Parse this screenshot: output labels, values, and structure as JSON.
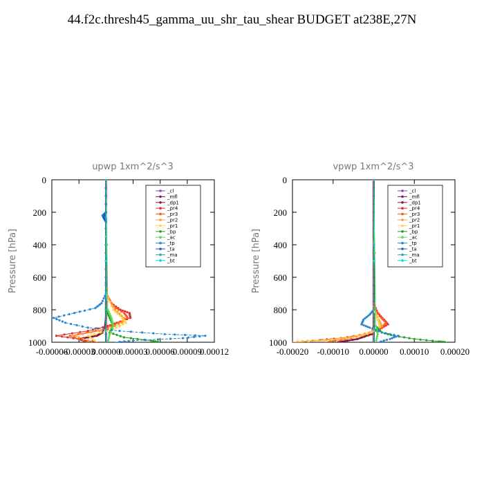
{
  "title": "44.f2c.thresh45_gamma_uu_shr_tau_shear  BUDGET at238E,27N",
  "legend_entries": [
    "_cl",
    "_mfl",
    "_dp1",
    "_pr4",
    "_pr3",
    "_pr2",
    "_pr1",
    "_bp",
    "_ac",
    "_tp",
    "_ta",
    "_ma",
    "_bt"
  ],
  "legend_colors": [
    "#8e44ad",
    "#7b1f5a",
    "#8b1a3a",
    "#e03030",
    "#ff5a1a",
    "#ff9a3a",
    "#ffd24a",
    "#22a022",
    "#55dd55",
    "#2a88cc",
    "#2255cc",
    "#22aaaa",
    "#00dddd"
  ],
  "chart_data": [
    {
      "type": "line",
      "title": "upwp   1xm^2/s^3",
      "ylabel": "Pressure  [hPa]",
      "ylim": [
        1000,
        0
      ],
      "xlim": [
        -6e-05,
        0.00012
      ],
      "yticks": [
        0,
        200,
        400,
        600,
        800,
        1000
      ],
      "xticks": [
        -6e-05,
        -3e-05,
        0.0,
        3e-05,
        6e-05,
        9e-05,
        0.00012
      ],
      "xtick_labels": [
        "-0.00006",
        "-0.00003",
        "0.00000",
        "0.00003",
        "0.00006",
        "0.00009",
        "0.00012"
      ],
      "grid": false,
      "legend_position": "top-right",
      "series": [
        {
          "name": "_cl",
          "y": [
            0,
            200,
            400,
            600,
            800,
            1000
          ],
          "x": [
            0,
            0,
            0,
            0,
            0,
            0
          ]
        },
        {
          "name": "_mfl",
          "y": [
            0,
            200,
            400,
            600,
            800,
            1000
          ],
          "x": [
            0,
            0,
            0,
            0,
            0,
            0
          ]
        },
        {
          "name": "_dp1",
          "y": [
            0,
            200,
            400,
            600,
            760,
            800,
            850,
            900,
            940,
            960,
            980,
            1000
          ],
          "x": [
            0,
            0,
            0,
            0,
            0,
            0,
            0,
            -1e-06,
            -4e-06,
            -1e-05,
            -3e-05,
            -2e-05
          ]
        },
        {
          "name": "_pr4",
          "y": [
            0,
            700,
            760,
            800,
            820,
            850,
            880,
            900,
            930,
            960,
            980,
            1000
          ],
          "x": [
            0,
            0,
            6e-06,
            1.6e-05,
            2.6e-05,
            2.7e-05,
            1.2e-05,
            2e-06,
            -2e-05,
            -5.5e-05,
            -3e-05,
            -1e-05
          ]
        },
        {
          "name": "_pr3",
          "y": [
            0,
            700,
            780,
            820,
            850,
            880,
            920,
            960,
            1000
          ],
          "x": [
            0,
            0,
            8e-06,
            2e-05,
            2.4e-05,
            1.4e-05,
            -2e-06,
            -4e-05,
            -2e-05
          ]
        },
        {
          "name": "_pr2",
          "y": [
            0,
            700,
            800,
            850,
            880,
            920,
            960,
            1000
          ],
          "x": [
            0,
            0,
            1e-05,
            2e-05,
            1.8e-05,
            2e-06,
            -3.5e-05,
            -1.5e-05
          ]
        },
        {
          "name": "_pr1",
          "y": [
            0,
            700,
            800,
            850,
            880,
            920,
            960,
            1000
          ],
          "x": [
            0,
            0,
            8e-06,
            1.8e-05,
            2.2e-05,
            8e-06,
            -2e-05,
            -1e-05
          ]
        },
        {
          "name": "_bp",
          "y": [
            0,
            800,
            850,
            900,
            940,
            970,
            990,
            1000
          ],
          "x": [
            0,
            0,
            4e-06,
            8e-06,
            4e-06,
            2e-05,
            5e-05,
            6e-05
          ]
        },
        {
          "name": "_ac",
          "y": [
            0,
            800,
            850,
            900,
            950,
            1000
          ],
          "x": [
            0,
            2e-06,
            6e-06,
            8e-06,
            4e-06,
            2e-06
          ]
        },
        {
          "name": "_tp",
          "y": [
            0,
            200,
            220,
            240,
            700,
            760,
            790,
            820,
            850,
            880,
            910,
            930,
            950,
            960,
            975,
            990,
            1000
          ],
          "x": [
            0,
            0,
            -4e-06,
            0,
            0,
            -5e-06,
            -1.2e-05,
            -3.5e-05,
            -5.8e-05,
            -4.5e-05,
            -2e-05,
            1.5e-05,
            6.5e-05,
            0.00011,
            8.5e-05,
            3e-05,
            1e-05
          ]
        },
        {
          "name": "_ta",
          "y": [
            0,
            200,
            230,
            260,
            1000
          ],
          "x": [
            0,
            0,
            -3e-06,
            0,
            0
          ]
        },
        {
          "name": "_ma",
          "y": [
            0,
            1000
          ],
          "x": [
            0,
            0
          ]
        },
        {
          "name": "_bt",
          "y": [
            0,
            1000
          ],
          "x": [
            0,
            0
          ]
        }
      ]
    },
    {
      "type": "line",
      "title": "vpwp   1xm^2/s^3",
      "ylabel": "Pressure  [hPa]",
      "ylim": [
        1000,
        0
      ],
      "xlim": [
        -0.0002,
        0.0002
      ],
      "yticks": [
        0,
        200,
        400,
        600,
        800,
        1000
      ],
      "xticks": [
        -0.0002,
        -0.0001,
        0.0,
        0.0001,
        0.0002
      ],
      "xtick_labels": [
        "-0.00020",
        "-0.00010",
        "0.00000",
        "0.00010",
        "0.00020"
      ],
      "grid": false,
      "legend_position": "top-right",
      "series": [
        {
          "name": "_cl",
          "y": [
            0,
            200,
            400,
            600,
            800,
            1000
          ],
          "x": [
            0,
            0,
            0,
            0,
            0,
            0
          ]
        },
        {
          "name": "_mfl",
          "y": [
            0,
            200,
            400,
            600,
            800,
            1000
          ],
          "x": [
            0,
            0,
            0,
            0,
            0,
            0
          ]
        },
        {
          "name": "_dp1",
          "y": [
            0,
            200,
            400,
            600,
            800,
            900,
            950,
            980,
            1000
          ],
          "x": [
            0,
            0,
            0,
            0,
            0,
            0,
            -5e-06,
            -4e-05,
            -9e-05
          ]
        },
        {
          "name": "_pr4",
          "y": [
            0,
            760,
            820,
            860,
            890,
            920,
            950,
            975,
            990,
            1000
          ],
          "x": [
            0,
            0,
            1e-05,
            2.5e-05,
            3.5e-05,
            1.5e-05,
            -2e-05,
            -8e-05,
            -0.00015,
            -0.0002
          ]
        },
        {
          "name": "_pr3",
          "y": [
            0,
            780,
            840,
            880,
            910,
            950,
            980,
            1000
          ],
          "x": [
            0,
            0,
            1.5e-05,
            3e-05,
            2e-05,
            -1.5e-05,
            -7e-05,
            -0.00012
          ]
        },
        {
          "name": "_pr2",
          "y": [
            0,
            800,
            860,
            900,
            940,
            970,
            990,
            1000
          ],
          "x": [
            0,
            0,
            1.2e-05,
            2e-05,
            -1e-05,
            -6e-05,
            -0.00015,
            -0.0002
          ]
        },
        {
          "name": "_pr1",
          "y": [
            0,
            800,
            860,
            900,
            940,
            970,
            990,
            1000
          ],
          "x": [
            0,
            0,
            1e-05,
            1.5e-05,
            -5e-06,
            -5e-05,
            -0.00012,
            -0.0002
          ]
        },
        {
          "name": "_bp",
          "y": [
            0,
            900,
            940,
            960,
            980,
            995,
            1000
          ],
          "x": [
            0,
            5e-06,
            2e-05,
            5e-05,
            0.0001,
            0.00016,
            0.00018
          ]
        },
        {
          "name": "_ac",
          "y": [
            0,
            900,
            950,
            1000
          ],
          "x": [
            0,
            5e-06,
            1e-05,
            5e-06
          ]
        },
        {
          "name": "_tp",
          "y": [
            0,
            800,
            830,
            860,
            890,
            910,
            940,
            960,
            980,
            1000
          ],
          "x": [
            0,
            0,
            -1e-05,
            -2.5e-05,
            -3e-05,
            -1e-05,
            2e-05,
            6e-05,
            4e-05,
            1e-05
          ]
        },
        {
          "name": "_ta",
          "y": [
            0,
            1000
          ],
          "x": [
            0,
            0
          ]
        },
        {
          "name": "_ma",
          "y": [
            0,
            1000
          ],
          "x": [
            0,
            0
          ]
        },
        {
          "name": "_bt",
          "y": [
            0,
            1000
          ],
          "x": [
            0,
            0
          ]
        }
      ]
    }
  ]
}
